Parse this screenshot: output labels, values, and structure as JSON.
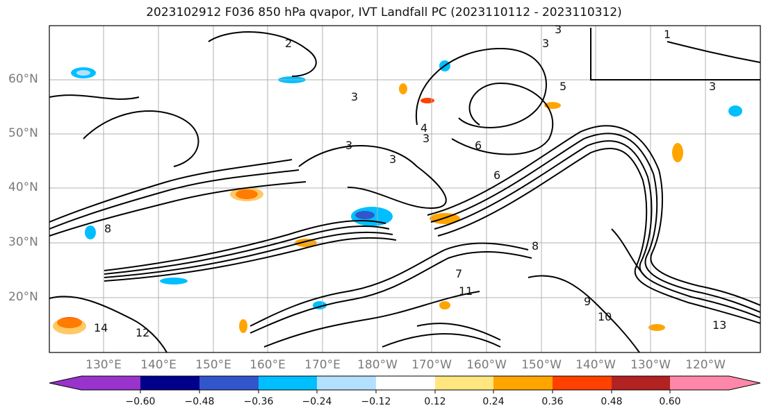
{
  "title": "2023102912 F036 850 hPa qvapor, IVT Landfall PC (2023110112 - 2023110312)",
  "lat_labels": [
    "60°N",
    "50°N",
    "40°N",
    "30°N",
    "20°N"
  ],
  "lon_labels": [
    "130°E",
    "140°E",
    "150°E",
    "160°E",
    "170°E",
    "180°W",
    "170°W",
    "160°W",
    "150°W",
    "140°W",
    "130°W",
    "120°W"
  ],
  "colorbar": {
    "tick_labels": [
      "−0.60",
      "−0.48",
      "−0.36",
      "−0.24",
      "−0.12",
      "0.12",
      "0.24",
      "0.36",
      "0.48",
      "0.60"
    ],
    "colors": [
      "#9933cc",
      "#00008b",
      "#3355cc",
      "#00bfff",
      "#b3e0ff",
      "#ffffff",
      "#ffe680",
      "#ffa500",
      "#ff4000",
      "#b22222",
      "#ff88aa"
    ]
  },
  "contour_labels": [
    "1",
    "2",
    "3",
    "3",
    "3",
    "3",
    "3",
    "3",
    "3",
    "4",
    "5",
    "6",
    "6",
    "7",
    "8",
    "8",
    "9",
    "10",
    "11",
    "12",
    "13",
    "14"
  ]
}
